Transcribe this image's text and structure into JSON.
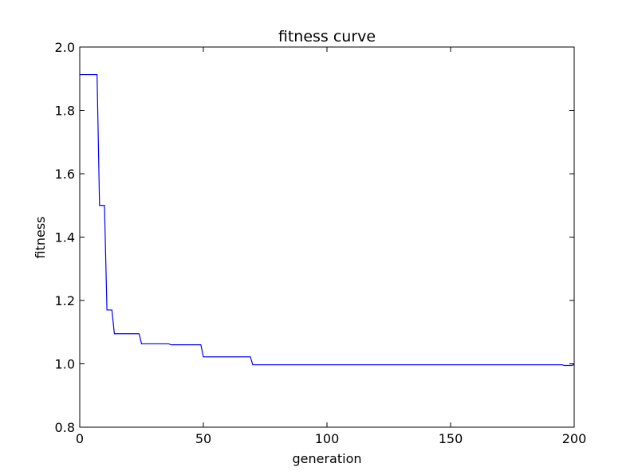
{
  "chart_data": {
    "type": "line",
    "title": "fitness curve",
    "x_label": "generation",
    "y_label": "fitness",
    "x": [
      0,
      7,
      8,
      10,
      11,
      13,
      14,
      24,
      25,
      36,
      37,
      49,
      50,
      69,
      70,
      195,
      196,
      199,
      200
    ],
    "series": [
      {
        "name": "fitness",
        "color": "#0000ff",
        "values": [
          1.913,
          1.913,
          1.5,
          1.5,
          1.17,
          1.17,
          1.095,
          1.095,
          1.063,
          1.063,
          1.06,
          1.06,
          1.022,
          1.022,
          0.997,
          0.997,
          0.995,
          0.995,
          0.998
        ]
      }
    ],
    "xlim": [
      0,
      200
    ],
    "xticks": [
      0,
      50,
      100,
      150,
      200
    ],
    "ylim": [
      0.8,
      2.0
    ],
    "yticks": [
      {
        "value": 0.8,
        "label": "0.8"
      },
      {
        "value": 1.0,
        "label": "1.0"
      },
      {
        "value": 1.2,
        "label": "1.2"
      },
      {
        "value": 1.4,
        "label": "1.4"
      },
      {
        "value": 1.6,
        "label": "1.6"
      },
      {
        "value": 1.8,
        "label": "1.8"
      },
      {
        "value": 2.0,
        "label": "2.0"
      }
    ],
    "grid": false
  }
}
